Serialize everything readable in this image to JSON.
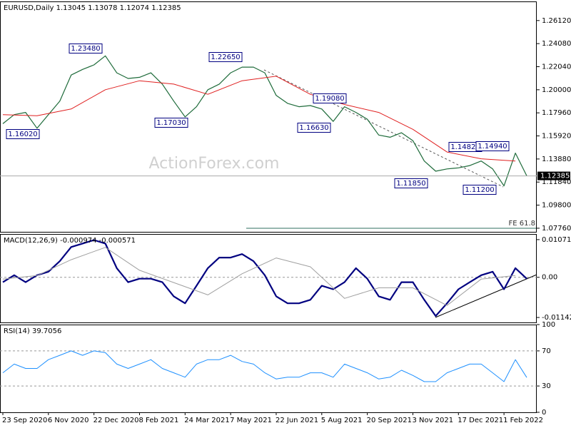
{
  "chart_data": [
    {
      "type": "line",
      "title": "EURUSD,Daily  1.13045 1.13078 1.12074 1.12385",
      "watermark": "ActionForex.com",
      "xlim": [
        -2,
        375
      ],
      "ylim": [
        1.0744,
        1.2781
      ],
      "yticks": [
        {
          "value": 1.2612,
          "label": "1.26120"
        },
        {
          "value": 1.2408,
          "label": "1.24080"
        },
        {
          "value": 1.2204,
          "label": "1.22040"
        },
        {
          "value": 1.2,
          "label": "1.20000"
        },
        {
          "value": 1.1796,
          "label": "1.17960"
        },
        {
          "value": 1.1592,
          "label": "1.15920"
        },
        {
          "value": 1.1388,
          "label": "1.13880"
        },
        {
          "value": 1.1184,
          "label": "1.11840"
        },
        {
          "value": 1.098,
          "label": "1.09800"
        },
        {
          "value": 1.0776,
          "label": "1.07760"
        }
      ],
      "last_price": {
        "value": 1.12385,
        "label": "1.12385"
      },
      "annotations": [
        "1.16020",
        "1.23480",
        "1.17030",
        "1.22650",
        "1.19080",
        "1.16630",
        "1.14820",
        "1.14940",
        "1.11850",
        "1.11200",
        "FE 61.8"
      ],
      "series": [
        {
          "color": "#1e6b3a",
          "width": 1.2,
          "x": [
            0,
            8,
            16,
            24,
            32,
            40,
            48,
            56,
            64,
            72,
            80,
            88,
            96,
            104,
            112,
            120,
            128,
            136,
            144,
            152,
            160,
            168,
            176,
            184,
            192,
            200,
            208,
            216,
            224,
            232,
            240,
            248,
            256,
            264,
            272,
            280,
            288,
            296,
            304,
            312,
            320,
            328,
            336,
            344,
            352,
            360,
            368
          ],
          "values": [
            1.17,
            1.178,
            1.18,
            1.166,
            1.178,
            1.19,
            1.213,
            1.218,
            1.222,
            1.23,
            1.215,
            1.21,
            1.211,
            1.215,
            1.205,
            1.19,
            1.176,
            1.185,
            1.2,
            1.205,
            1.215,
            1.22,
            1.22,
            1.215,
            1.195,
            1.188,
            1.185,
            1.186,
            1.183,
            1.172,
            1.185,
            1.18,
            1.174,
            1.16,
            1.158,
            1.162,
            1.155,
            1.137,
            1.128,
            1.13,
            1.131,
            1.133,
            1.137,
            1.13,
            1.115,
            1.144,
            1.1239
          ]
        },
        {
          "color": "#e02020",
          "width": 1,
          "x": [
            0,
            24,
            48,
            72,
            96,
            120,
            144,
            168,
            192,
            216,
            240,
            264,
            288,
            312,
            336,
            360
          ],
          "values": [
            1.178,
            1.177,
            1.183,
            1.2,
            1.208,
            1.205,
            1.196,
            1.208,
            1.212,
            1.196,
            1.187,
            1.18,
            1.165,
            1.145,
            1.139,
            1.137
          ]
        }
      ]
    },
    {
      "type": "line",
      "title": "MACD(12,26,9) -0.000974 -0.000571",
      "xlim": [
        -2,
        375
      ],
      "ylim": [
        -0.01283,
        0.01232
      ],
      "yticks": [
        0.010715,
        {
          "value": 0,
          "label": "0.00"
        },
        -0.011424
      ],
      "levels": [
        0
      ],
      "series": [
        {
          "color": "#000080",
          "width": 2.2,
          "x": [
            0,
            8,
            16,
            24,
            32,
            40,
            48,
            56,
            64,
            72,
            80,
            88,
            96,
            104,
            112,
            120,
            128,
            136,
            144,
            152,
            160,
            168,
            176,
            184,
            192,
            200,
            208,
            216,
            224,
            232,
            240,
            248,
            256,
            264,
            272,
            280,
            288,
            296,
            304,
            312,
            320,
            328,
            336,
            344,
            352,
            360,
            368
          ],
          "values": [
            -0.0014,
            0.0006,
            -0.0014,
            0.0006,
            0.0016,
            0.0046,
            0.0086,
            0.0096,
            0.0106,
            0.0096,
            0.0026,
            -0.0014,
            -0.0004,
            -0.0004,
            -0.0014,
            -0.0054,
            -0.0074,
            -0.0024,
            0.0026,
            0.0056,
            0.0056,
            0.0066,
            0.0046,
            0.0006,
            -0.0054,
            -0.0074,
            -0.0074,
            -0.0064,
            -0.0024,
            -0.0034,
            -0.0014,
            0.0026,
            -0.0004,
            -0.0054,
            -0.0064,
            -0.0014,
            -0.0014,
            -0.0064,
            -0.011,
            -0.0074,
            -0.0034,
            -0.0014,
            0.0006,
            0.0016,
            -0.0034,
            0.0026,
            -0.0004
          ]
        },
        {
          "color": "#a0a0a0",
          "width": 1,
          "x": [
            0,
            24,
            48,
            72,
            96,
            120,
            144,
            168,
            192,
            216,
            240,
            264,
            288,
            312,
            336,
            360
          ],
          "values": [
            -0.0005,
            0.0005,
            0.005,
            0.0085,
            0.002,
            -0.0015,
            -0.005,
            0.001,
            0.0055,
            0.003,
            -0.006,
            -0.003,
            -0.003,
            -0.008,
            -0.0005,
            0.0005
          ]
        }
      ]
    },
    {
      "type": "line",
      "title": "RSI(14) 39.7056",
      "xlim": [
        -2,
        375
      ],
      "ylim": [
        0,
        100
      ],
      "yticks": [
        100,
        70,
        30,
        0
      ],
      "levels": [
        70,
        30
      ],
      "xticks": [
        {
          "value": 0,
          "label": "23 Sep 2020"
        },
        {
          "value": 32,
          "label": "6 Nov 2020"
        },
        {
          "value": 64,
          "label": "22 Dec 2020"
        },
        {
          "value": 96,
          "label": "8 Feb 2021"
        },
        {
          "value": 128,
          "label": "24 Mar 2021"
        },
        {
          "value": 160,
          "label": "7 May 2021"
        },
        {
          "value": 192,
          "label": "22 Jun 2021"
        },
        {
          "value": 224,
          "label": "5 Aug 2021"
        },
        {
          "value": 256,
          "label": "20 Sep 2021"
        },
        {
          "value": 288,
          "label": "3 Nov 2021"
        },
        {
          "value": 320,
          "label": "17 Dec 2021"
        },
        {
          "value": 352,
          "label": "1 Feb 2022"
        }
      ],
      "series": [
        {
          "color": "#1e90ff",
          "width": 1,
          "x": [
            0,
            8,
            16,
            24,
            32,
            40,
            48,
            56,
            64,
            72,
            80,
            88,
            96,
            104,
            112,
            120,
            128,
            136,
            144,
            152,
            160,
            168,
            176,
            184,
            192,
            200,
            208,
            216,
            224,
            232,
            240,
            248,
            256,
            264,
            272,
            280,
            288,
            296,
            304,
            312,
            320,
            328,
            336,
            344,
            352,
            360,
            368
          ],
          "values": [
            45,
            55,
            50,
            50,
            60,
            65,
            70,
            65,
            70,
            68,
            55,
            50,
            55,
            60,
            50,
            45,
            40,
            55,
            60,
            60,
            65,
            58,
            55,
            45,
            38,
            40,
            40,
            45,
            45,
            40,
            55,
            50,
            45,
            38,
            40,
            48,
            42,
            35,
            35,
            45,
            50,
            55,
            55,
            45,
            35,
            60,
            39.7
          ]
        }
      ]
    }
  ]
}
